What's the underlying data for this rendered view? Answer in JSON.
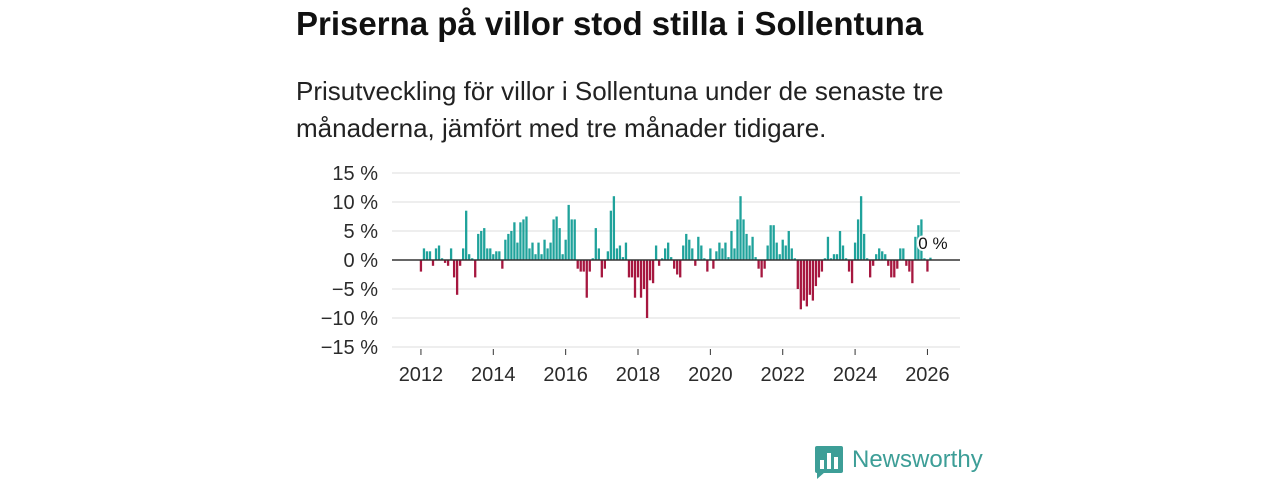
{
  "chart_data": {
    "type": "bar",
    "title": "Priserna på villor stod stilla i Sollentuna",
    "subtitle": "Prisutveckling för villor i Sollentuna under de senaste tre månaderna, jämfört med tre månader tidigare.",
    "x_start_year": 2012,
    "x_start_month": 1,
    "xlim": [
      2011.2,
      2026.9
    ],
    "ylim": [
      -15,
      15
    ],
    "x_ticks": [
      2012,
      2014,
      2016,
      2018,
      2020,
      2022,
      2024,
      2026
    ],
    "x_tick_labels": [
      "2012",
      "2014",
      "2016",
      "2018",
      "2020",
      "2022",
      "2024",
      "2026"
    ],
    "y_ticks": [
      15,
      10,
      5,
      0,
      -5,
      -10,
      -15
    ],
    "y_tick_labels": [
      "15 %",
      "10 %",
      "5 %",
      "0 %",
      "−5 %",
      "−10 %",
      "−15 %"
    ],
    "grid": true,
    "series": [
      {
        "values": [
          -2,
          2,
          1.5,
          1.5,
          -1,
          2,
          2.5,
          0.3,
          -0.5,
          -1,
          2,
          -3,
          -6,
          -1,
          2,
          8.5,
          1,
          0.3,
          -3,
          4.5,
          5,
          5.5,
          2,
          2,
          1,
          1.5,
          1.5,
          -1.5,
          3.5,
          4.5,
          5,
          6.5,
          3,
          6.5,
          7,
          7.5,
          2,
          3,
          1,
          3,
          1,
          3.5,
          2,
          3,
          7,
          7.5,
          5.5,
          1,
          3.5,
          9.5,
          7,
          7,
          -1.5,
          -2,
          -2,
          -6.5,
          -2,
          0.3,
          5.5,
          2,
          -3,
          -1.5,
          1.5,
          8.5,
          11,
          2,
          2.5,
          0.5,
          3,
          -3,
          -3,
          -6.5,
          -3,
          -6.5,
          -5,
          -10,
          -3.5,
          -4,
          2.5,
          -1,
          0.3,
          2,
          3,
          0.5,
          -1.5,
          -2.5,
          -3,
          2.5,
          4.5,
          3.5,
          2,
          -1,
          4,
          2.5,
          0.3,
          -2,
          2,
          -1.5,
          1.5,
          3,
          2,
          3,
          0.5,
          5,
          2,
          7,
          11,
          7,
          4.5,
          2.5,
          4,
          0.5,
          -1.5,
          -3,
          -1.5,
          2.5,
          6,
          6,
          3,
          1,
          3.5,
          2.5,
          5,
          2,
          0.3,
          -5,
          -8.5,
          -7,
          -8,
          -6,
          -7,
          -4.5,
          -3,
          -2,
          0.3,
          4,
          0.3,
          1,
          1,
          5,
          2.5,
          0.3,
          -2,
          -4,
          3,
          7,
          11,
          4.5,
          0.3,
          -3,
          -1,
          1,
          2,
          1.5,
          1,
          -1,
          -3,
          -3,
          -1.5,
          2,
          2,
          -1,
          -2,
          -4,
          4,
          6,
          7,
          0.3,
          -2,
          0.4
        ]
      }
    ],
    "annotations": [
      {
        "text": "0 %"
      }
    ],
    "colors": {
      "positive": "#1fa29b",
      "negative": "#a6173f",
      "zero_line": "#333333",
      "grid": "#dcdcdc",
      "tick": "#333333"
    }
  },
  "brand": {
    "name": "Newsworthy",
    "icon": "newsworthy-logo-icon",
    "color": "#3d9e97"
  }
}
